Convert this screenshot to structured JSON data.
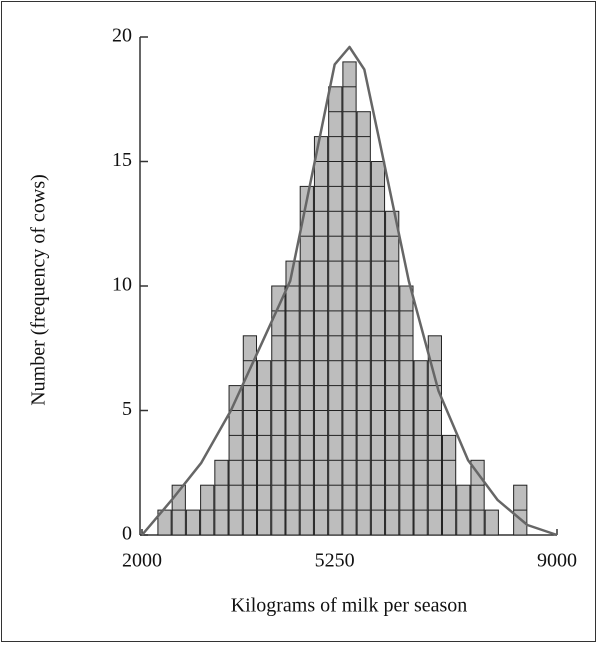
{
  "chart_data": {
    "type": "histogram",
    "xlabel": "Kilograms of milk per season",
    "ylabel": "Number (frequency of cows)",
    "bins": [
      2260,
      2500,
      2740,
      2980,
      3220,
      3460,
      3700,
      3940,
      4180,
      4420,
      4660,
      4900,
      5140,
      5380,
      5620,
      5860,
      6100,
      6340,
      6580,
      6820,
      7060,
      7300,
      7540,
      7780,
      8020,
      8260,
      8500
    ],
    "values": [
      1,
      2,
      1,
      2,
      3,
      6,
      8,
      7,
      10,
      11,
      14,
      16,
      18,
      19,
      17,
      15,
      13,
      10,
      7,
      8,
      4,
      2,
      3,
      1,
      0,
      2
    ],
    "color": "#bdbdbd",
    "curve": {
      "color": "#666666",
      "x": [
        2000,
        2500,
        3000,
        3500,
        4000,
        4500,
        5000,
        5250,
        5500,
        5750,
        6000,
        6500,
        7000,
        7500,
        8000,
        8500,
        9000
      ],
      "y": [
        0,
        1.4,
        2.9,
        5.0,
        7.6,
        10.2,
        16.0,
        18.9,
        19.6,
        18.7,
        15.9,
        10.2,
        5.8,
        3.0,
        1.4,
        0.4,
        0
      ]
    },
    "xlim": [
      2000,
      9000
    ],
    "xticks": [
      2000,
      5250,
      9000
    ],
    "ylim": [
      0,
      20
    ],
    "yticks": [
      0,
      5,
      10,
      15,
      20
    ]
  }
}
